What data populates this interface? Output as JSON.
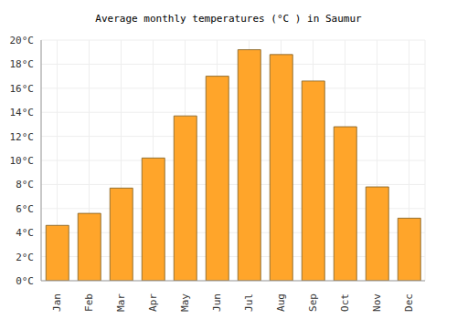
{
  "chart_data": {
    "type": "bar",
    "title": "Average monthly temperatures (°C ) in Saumur",
    "categories": [
      "Jan",
      "Feb",
      "Mar",
      "Apr",
      "May",
      "Jun",
      "Jul",
      "Aug",
      "Sep",
      "Oct",
      "Nov",
      "Dec"
    ],
    "values": [
      4.6,
      5.6,
      7.7,
      10.2,
      13.7,
      17.0,
      19.2,
      18.8,
      16.6,
      12.8,
      7.8,
      5.2
    ],
    "color": "#ffa52a",
    "ylim": [
      0,
      20
    ],
    "yticks": [
      {
        "value": 0,
        "label": "0°C"
      },
      {
        "value": 2,
        "label": "2°C"
      },
      {
        "value": 4,
        "label": "4°C"
      },
      {
        "value": 6,
        "label": "6°C"
      },
      {
        "value": 8,
        "label": "8°C"
      },
      {
        "value": 10,
        "label": "10°C"
      },
      {
        "value": 12,
        "label": "12°C"
      },
      {
        "value": 14,
        "label": "14°C"
      },
      {
        "value": 16,
        "label": "16°C"
      },
      {
        "value": 18,
        "label": "18°C"
      },
      {
        "value": 20,
        "label": "20°C"
      }
    ],
    "grid": true
  }
}
